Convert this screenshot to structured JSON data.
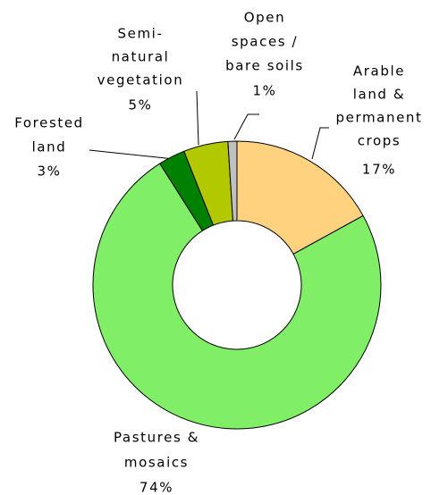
{
  "chart_data": {
    "type": "donut",
    "categories": [
      [
        "Arable",
        "land &",
        "permanent",
        "crops"
      ],
      [
        "Pastures &",
        "mosaics"
      ],
      [
        "Forested",
        "land"
      ],
      [
        "Semi-",
        "natural",
        "vegetation"
      ],
      [
        "Open",
        "spaces /",
        "bare soils"
      ]
    ],
    "values": [
      17,
      74,
      3,
      5,
      1
    ],
    "value_labels": [
      "17%",
      "74%",
      "3%",
      "5%",
      "1%"
    ],
    "colors": [
      "#ffd280",
      "#80ee66",
      "#008000",
      "#b2c800",
      "#c0c0c0"
    ]
  }
}
